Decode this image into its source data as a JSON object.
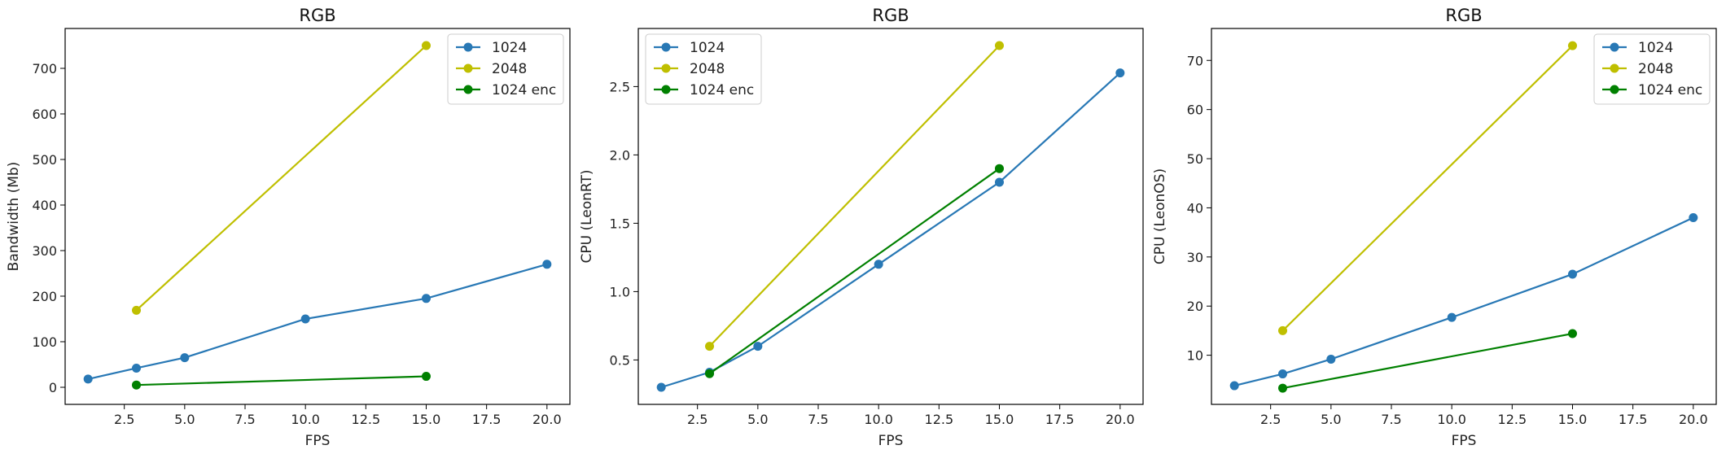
{
  "chart_data": [
    {
      "type": "line",
      "title": "RGB",
      "xlabel": "FPS",
      "ylabel": "Bandwidth (Mb)",
      "xlim": [
        0.05,
        20.95
      ],
      "ylim": [
        -37.5,
        787.5
      ],
      "xticks": [
        2.5,
        5.0,
        7.5,
        10.0,
        12.5,
        15.0,
        17.5,
        20.0
      ],
      "xtick_labels": [
        "2.5",
        "5.0",
        "7.5",
        "10.0",
        "12.5",
        "15.0",
        "17.5",
        "20.0"
      ],
      "yticks": [
        0,
        100,
        200,
        300,
        400,
        500,
        600,
        700
      ],
      "ytick_labels": [
        "0",
        "100",
        "200",
        "300",
        "400",
        "500",
        "600",
        "700"
      ],
      "legend_position": "top-right",
      "grid": false,
      "series": [
        {
          "name": "1024",
          "color": "#2878b5",
          "x": [
            1,
            3,
            5,
            10,
            15,
            20
          ],
          "y": [
            18,
            42,
            65,
            150,
            195,
            270
          ]
        },
        {
          "name": "2048",
          "color": "#bfbf00",
          "x": [
            3,
            15
          ],
          "y": [
            169,
            750
          ]
        },
        {
          "name": "1024 enc",
          "color": "#008000",
          "x": [
            3,
            15
          ],
          "y": [
            5,
            24
          ]
        }
      ]
    },
    {
      "type": "line",
      "title": "RGB",
      "xlabel": "FPS",
      "ylabel": "CPU (LeonRT)",
      "xlim": [
        0.05,
        20.95
      ],
      "ylim": [
        0.175,
        2.925
      ],
      "xticks": [
        2.5,
        5.0,
        7.5,
        10.0,
        12.5,
        15.0,
        17.5,
        20.0
      ],
      "xtick_labels": [
        "2.5",
        "5.0",
        "7.5",
        "10.0",
        "12.5",
        "15.0",
        "17.5",
        "20.0"
      ],
      "yticks": [
        0.5,
        1.0,
        1.5,
        2.0,
        2.5
      ],
      "ytick_labels": [
        "0.5",
        "1.0",
        "1.5",
        "2.0",
        "2.5"
      ],
      "legend_position": "top-left",
      "grid": false,
      "series": [
        {
          "name": "1024",
          "color": "#2878b5",
          "x": [
            1,
            3,
            5,
            10,
            15,
            20
          ],
          "y": [
            0.3,
            0.41,
            0.6,
            1.2,
            1.8,
            2.6
          ]
        },
        {
          "name": "2048",
          "color": "#bfbf00",
          "x": [
            3,
            15
          ],
          "y": [
            0.6,
            2.8
          ]
        },
        {
          "name": "1024 enc",
          "color": "#008000",
          "x": [
            3,
            15
          ],
          "y": [
            0.4,
            1.9
          ]
        }
      ]
    },
    {
      "type": "line",
      "title": "RGB",
      "xlabel": "FPS",
      "ylabel": "CPU (LeonOS)",
      "xlim": [
        0.05,
        20.95
      ],
      "ylim": [
        0.0,
        76.5
      ],
      "xticks": [
        2.5,
        5.0,
        7.5,
        10.0,
        12.5,
        15.0,
        17.5,
        20.0
      ],
      "xtick_labels": [
        "2.5",
        "5.0",
        "7.5",
        "10.0",
        "12.5",
        "15.0",
        "17.5",
        "20.0"
      ],
      "yticks": [
        10,
        20,
        30,
        40,
        50,
        60,
        70
      ],
      "ytick_labels": [
        "10",
        "20",
        "30",
        "40",
        "50",
        "60",
        "70"
      ],
      "legend_position": "top-right",
      "grid": false,
      "series": [
        {
          "name": "1024",
          "color": "#2878b5",
          "x": [
            1,
            3,
            5,
            10,
            15,
            20
          ],
          "y": [
            3.8,
            6.2,
            9.2,
            17.7,
            26.5,
            38
          ]
        },
        {
          "name": "2048",
          "color": "#bfbf00",
          "x": [
            3,
            15
          ],
          "y": [
            15,
            73
          ]
        },
        {
          "name": "1024 enc",
          "color": "#008000",
          "x": [
            3,
            15
          ],
          "y": [
            3.3,
            14.4
          ]
        }
      ]
    }
  ]
}
